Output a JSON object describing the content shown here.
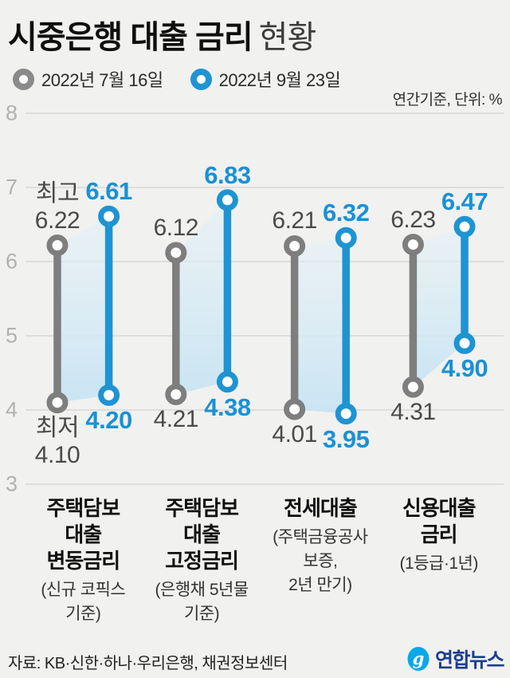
{
  "title": {
    "main": "시중은행 대출 금리",
    "sub": "현황"
  },
  "legend": {
    "items": [
      {
        "label": "2022년 7월 16일",
        "color": "#8a8a8a"
      },
      {
        "label": "2022년 9월 23일",
        "color": "#1e94d2"
      }
    ]
  },
  "unit_note": "연간기준, 단위: %",
  "colors": {
    "background": "#f1f1ef",
    "grid": "#d8d8d6",
    "axis_text": "#b1b1b1",
    "old_series": "#7e7e7e",
    "new_series": "#1e94d2",
    "old_text": "#4a4a4a",
    "new_text": "#1a91d3",
    "band_top": "#e3f1f8",
    "band_bottom": "#c7e4f3",
    "logo_blue": "#09a8e7",
    "logo_navy": "#1c3e8e"
  },
  "chart_data": {
    "type": "dumbbell-range",
    "title": "시중은행 대출 금리 현황",
    "unit": "%",
    "note": "연간기준, 단위: %",
    "ylim": [
      3,
      8
    ],
    "yticks": [
      8,
      7,
      6,
      5,
      4,
      3
    ],
    "grid": true,
    "series_names": [
      "2022년 7월 16일",
      "2022년 9월 23일"
    ],
    "high_label": "최고",
    "low_label": "최저",
    "categories": [
      {
        "name_lines": [
          "주택담보",
          "대출",
          "변동금리"
        ],
        "sub_lines": [
          "(신규 코픽스",
          "기준)"
        ],
        "old": {
          "high": 6.22,
          "low": 4.1
        },
        "new": {
          "high": 6.61,
          "low": 4.2
        }
      },
      {
        "name_lines": [
          "주택담보",
          "대출",
          "고정금리"
        ],
        "sub_lines": [
          "(은행채 5년물",
          "기준)"
        ],
        "old": {
          "high": 6.12,
          "low": 4.21
        },
        "new": {
          "high": 6.83,
          "low": 4.38
        }
      },
      {
        "name_lines": [
          "전세대출"
        ],
        "sub_lines": [
          "(주택금융공사",
          "보증,",
          "2년 만기)"
        ],
        "old": {
          "high": 6.21,
          "low": 4.01
        },
        "new": {
          "high": 6.32,
          "low": 3.95
        }
      },
      {
        "name_lines": [
          "신용대출",
          "금리"
        ],
        "sub_lines": [
          "(1등급·1년)"
        ],
        "old": {
          "high": 6.23,
          "low": 4.31
        },
        "new": {
          "high": 6.47,
          "low": 4.9
        }
      }
    ]
  },
  "footer": {
    "source": "자료: KB·신한·하나·우리은행, 채권정보센터",
    "logo_text": "연합뉴스",
    "logo_glyph": "g"
  }
}
